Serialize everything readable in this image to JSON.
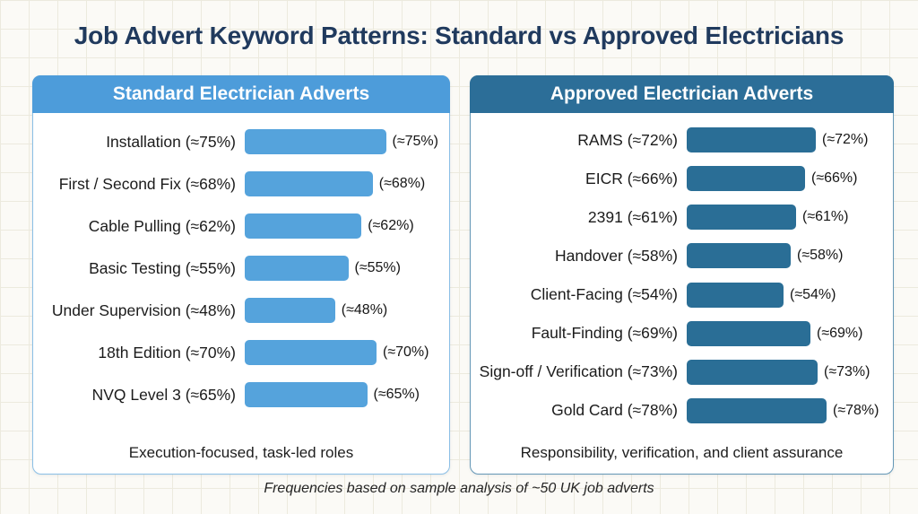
{
  "title": "Job Advert Keyword Patterns: Standard vs Approved Electricians",
  "caption": "Frequencies based on sample analysis of ~50 UK job adverts",
  "colors": {
    "title_text": "#203a5e",
    "standard_header_bg": "#4d9cda",
    "standard_bar": "#55a3dc",
    "approved_header_bg": "#2c6e98",
    "approved_bar": "#2a6e96",
    "panel_bg": "#ffffff",
    "background": "#fbfaf6"
  },
  "chart_data": [
    {
      "type": "bar",
      "orientation": "horizontal",
      "title": "Standard Electrician Adverts",
      "footer": "Execution-focused, task-led roles",
      "unit": "%",
      "xlim": [
        0,
        100
      ],
      "grid": false,
      "bar_color": "#55a3dc",
      "categories": [
        "Installation",
        "First / Second Fix",
        "Cable Pulling",
        "Basic Testing",
        "Under Supervision",
        "18th Edition",
        "NVQ Level 3"
      ],
      "values": [
        75,
        68,
        62,
        55,
        48,
        70,
        65
      ],
      "rows": [
        {
          "label": "Installation (≈75%)",
          "percent": 75,
          "value_label": "(≈75%)"
        },
        {
          "label": "First / Second Fix (≈68%)",
          "percent": 68,
          "value_label": "(≈68%)"
        },
        {
          "label": "Cable Pulling (≈62%)",
          "percent": 62,
          "value_label": "(≈62%)"
        },
        {
          "label": "Basic Testing (≈55%)",
          "percent": 55,
          "value_label": "(≈55%)"
        },
        {
          "label": "Under Supervision (≈48%)",
          "percent": 48,
          "value_label": "(≈48%)"
        },
        {
          "label": "18th Edition (≈70%)",
          "percent": 70,
          "value_label": "(≈70%)"
        },
        {
          "label": "NVQ Level 3 (≈65%)",
          "percent": 65,
          "value_label": "(≈65%)"
        }
      ]
    },
    {
      "type": "bar",
      "orientation": "horizontal",
      "title": "Approved Electrician Adverts",
      "footer": "Responsibility, verification, and client assurance",
      "unit": "%",
      "xlim": [
        0,
        100
      ],
      "grid": false,
      "bar_color": "#2a6e96",
      "categories": [
        "RAMS",
        "EICR",
        "2391",
        "Handover",
        "Client-Facing",
        "Fault-Finding",
        "Sign-off / Verification",
        "Gold Card"
      ],
      "values": [
        72,
        66,
        61,
        58,
        54,
        69,
        73,
        78
      ],
      "rows": [
        {
          "label": "RAMS (≈72%)",
          "percent": 72,
          "value_label": "(≈72%)"
        },
        {
          "label": "EICR (≈66%)",
          "percent": 66,
          "value_label": "(≈66%)"
        },
        {
          "label": "2391 (≈61%)",
          "percent": 61,
          "value_label": "(≈61%)"
        },
        {
          "label": "Handover (≈58%)",
          "percent": 58,
          "value_label": "(≈58%)"
        },
        {
          "label": "Client-Facing (≈54%)",
          "percent": 54,
          "value_label": "(≈54%)"
        },
        {
          "label": "Fault-Finding (≈69%)",
          "percent": 69,
          "value_label": "(≈69%)"
        },
        {
          "label": "Sign-off / Verification (≈73%)",
          "percent": 73,
          "value_label": "(≈73%)"
        },
        {
          "label": "Gold Card (≈78%)",
          "percent": 78,
          "value_label": "(≈78%)"
        }
      ]
    }
  ]
}
